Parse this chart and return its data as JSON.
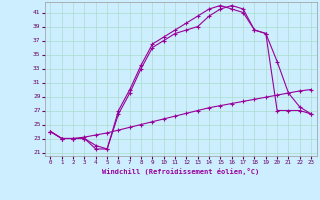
{
  "xlabel": "Windchill (Refroidissement éolien,°C)",
  "bg_color": "#cceeff",
  "grid_color": "#aaddcc",
  "line_color": "#990099",
  "xlim": [
    -0.5,
    23.5
  ],
  "ylim": [
    20.5,
    42.5
  ],
  "yticks": [
    21,
    23,
    25,
    27,
    29,
    31,
    33,
    35,
    37,
    39,
    41
  ],
  "xticks": [
    0,
    1,
    2,
    3,
    4,
    5,
    6,
    7,
    8,
    9,
    10,
    11,
    12,
    13,
    14,
    15,
    16,
    17,
    18,
    19,
    20,
    21,
    22,
    23
  ],
  "curve1_x": [
    0,
    1,
    2,
    3,
    4,
    5,
    6,
    7,
    8,
    9,
    10,
    11,
    12,
    13,
    14,
    15,
    16,
    17,
    18,
    19,
    20,
    21,
    22,
    23
  ],
  "curve1_y": [
    24.0,
    23.0,
    23.0,
    23.2,
    23.5,
    23.8,
    24.2,
    24.6,
    25.0,
    25.4,
    25.8,
    26.2,
    26.6,
    27.0,
    27.4,
    27.7,
    28.0,
    28.3,
    28.6,
    28.9,
    29.2,
    29.5,
    29.8,
    30.0
  ],
  "curve2_x": [
    0,
    1,
    2,
    3,
    4,
    5,
    6,
    7,
    8,
    9,
    10,
    11,
    12,
    13,
    14,
    15,
    16,
    17,
    18,
    19,
    20,
    21,
    22,
    23
  ],
  "curve2_y": [
    24.0,
    23.0,
    23.0,
    23.0,
    21.5,
    21.5,
    27.0,
    30.0,
    33.5,
    36.5,
    37.5,
    38.5,
    39.5,
    40.5,
    41.5,
    42.0,
    41.5,
    41.0,
    38.5,
    38.0,
    34.0,
    29.5,
    27.5,
    26.5
  ],
  "curve3_x": [
    0,
    1,
    2,
    3,
    4,
    5,
    6,
    7,
    8,
    9,
    10,
    11,
    12,
    13,
    14,
    15,
    16,
    17,
    18,
    19,
    20,
    21,
    22,
    23
  ],
  "curve3_y": [
    24.0,
    23.0,
    23.0,
    23.0,
    22.0,
    21.5,
    26.5,
    29.5,
    33.0,
    36.0,
    37.0,
    38.0,
    38.5,
    39.0,
    40.5,
    41.5,
    42.0,
    41.5,
    38.5,
    38.0,
    27.0,
    27.0,
    27.0,
    26.5
  ]
}
